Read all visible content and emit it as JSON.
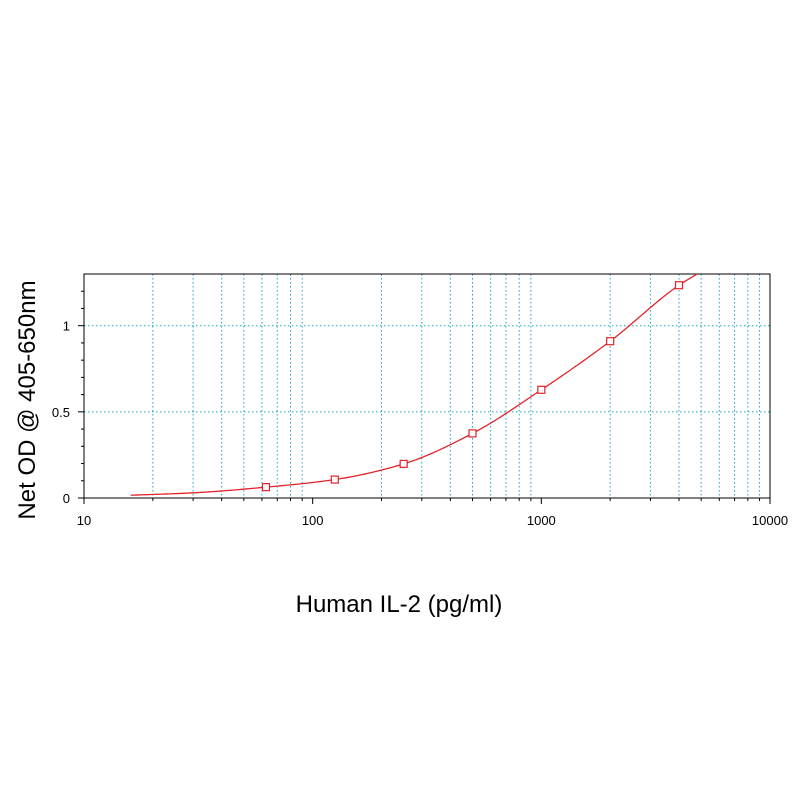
{
  "chart_data": {
    "type": "scatter",
    "title": "",
    "xlabel": "Human IL-2 (pg/ml)",
    "ylabel": "Net OD @ 405-650nm",
    "x_scale": "log",
    "xlim": [
      10,
      10000
    ],
    "ylim": [
      0,
      1.3
    ],
    "x_ticks": [
      10,
      100,
      1000,
      10000
    ],
    "x_tick_labels": [
      "10",
      "100",
      "1000",
      "10000"
    ],
    "y_ticks": [
      0,
      0.5,
      1
    ],
    "y_tick_labels": [
      "0",
      "0.5",
      "1"
    ],
    "grid": true,
    "legend": "none",
    "series": [
      {
        "marker": "square-open",
        "x": [
          62.5,
          125,
          250,
          500,
          1000,
          2000,
          4000
        ],
        "y": [
          0.063,
          0.107,
          0.198,
          0.375,
          0.628,
          0.91,
          1.235
        ]
      }
    ],
    "fit_curve": {
      "x": [
        16,
        30,
        62.5,
        125,
        250,
        500,
        1000,
        2000,
        4000,
        4800
      ],
      "y": [
        0.016,
        0.03,
        0.063,
        0.107,
        0.198,
        0.375,
        0.628,
        0.91,
        1.235,
        1.3
      ]
    },
    "colors": {
      "series": "#e0242a",
      "grid": "#1aa3c8",
      "axis": "#000000"
    }
  }
}
